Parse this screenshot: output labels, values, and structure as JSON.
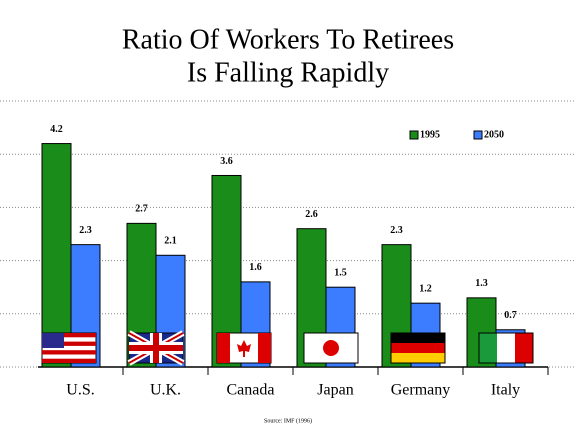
{
  "chart_data": {
    "type": "bar",
    "title": "Ratio Of Workers To Retirees",
    "subtitle": "Is Falling Rapidly",
    "categories": [
      "U.S.",
      "U.K.",
      "Canada",
      "Japan",
      "Germany",
      "Italy"
    ],
    "series": [
      {
        "name": "1995",
        "color": "#1a8c1a",
        "values": [
          4.2,
          2.7,
          3.6,
          2.6,
          2.3,
          1.3
        ]
      },
      {
        "name": "2050",
        "color": "#3c7dff",
        "values": [
          2.3,
          2.1,
          1.6,
          1.5,
          1.2,
          0.7
        ]
      }
    ],
    "ylim": [
      0,
      5
    ],
    "yticks": [
      0,
      1,
      2,
      3,
      4,
      5
    ],
    "grid": true,
    "legend": "top-right",
    "source": "Source: IMF (1996)"
  }
}
